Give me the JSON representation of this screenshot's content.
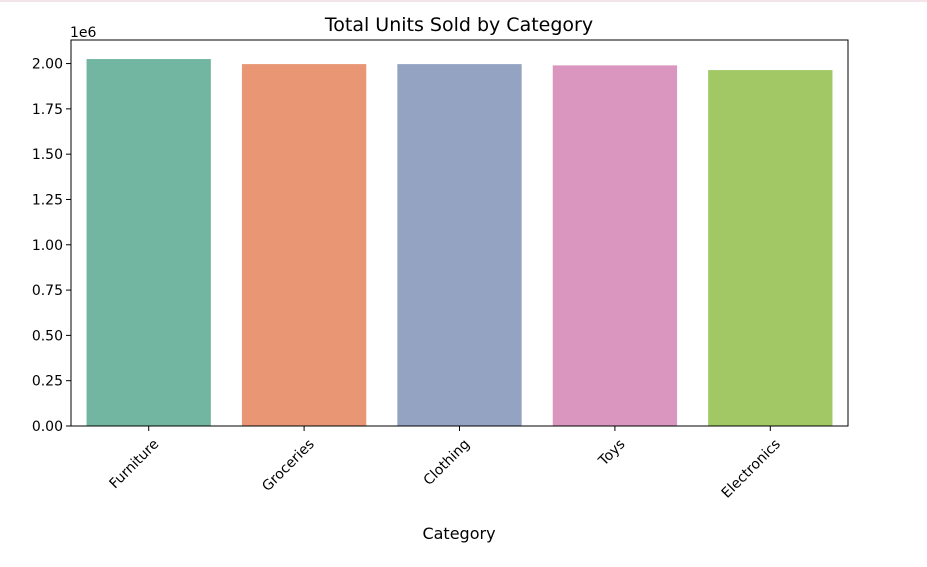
{
  "chart_data": {
    "type": "bar",
    "title": "Total Units Sold by Category",
    "xlabel": "Category",
    "ylabel": "",
    "offset_label": "1e6",
    "categories": [
      "Furniture",
      "Groceries",
      "Clothing",
      "Toys",
      "Electronics"
    ],
    "values": [
      2.025,
      1.997,
      1.997,
      1.99,
      1.964
    ],
    "colors": [
      "#72b6a1",
      "#e99675",
      "#95a3c3",
      "#db96c0",
      "#a2c865"
    ],
    "ylim": [
      0,
      2.13
    ],
    "yticks": [
      "0.00",
      "0.25",
      "0.50",
      "0.75",
      "1.00",
      "1.25",
      "1.50",
      "1.75",
      "2.00"
    ],
    "grid": false,
    "legend": "none"
  }
}
